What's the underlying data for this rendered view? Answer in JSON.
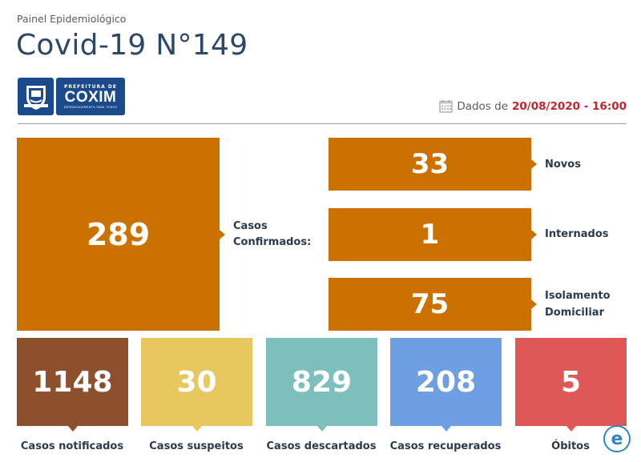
{
  "header": {
    "subtitle": "Painel Epidemiológico",
    "title": "Covid-19 N°149"
  },
  "logo": {
    "line1": "PREFEITURA DE",
    "line2": "COXIM",
    "line3": "DESENVOLVIMENTO PARA TODOS"
  },
  "dateline": {
    "prefix": "Dados de",
    "date": "20/08/2020 - 16:00",
    "icon": "calendar-icon"
  },
  "confirmed": {
    "value": "289",
    "label_line1": "Casos",
    "label_line2": "Confirmados:",
    "color": "#cc7000"
  },
  "breakdown": [
    {
      "value": "33",
      "label_line1": "Novos",
      "label_line2": ""
    },
    {
      "value": "1",
      "label_line1": "Internados",
      "label_line2": ""
    },
    {
      "value": "75",
      "label_line1": "Isolamento",
      "label_line2": "Domiciliar"
    }
  ],
  "stats": [
    {
      "value": "1148",
      "label": "Casos notificados",
      "color": "#8e4f2c"
    },
    {
      "value": "30",
      "label": "Casos suspeitos",
      "color": "#e8c75f"
    },
    {
      "value": "829",
      "label": "Casos descartados",
      "color": "#7dbfbc"
    },
    {
      "value": "208",
      "label": "Casos recuperados",
      "color": "#6d9fe2"
    },
    {
      "value": "5",
      "label": "Óbitos",
      "color": "#e05757"
    }
  ],
  "badge": {
    "letter": "e",
    "icon": "e-badge-icon"
  }
}
